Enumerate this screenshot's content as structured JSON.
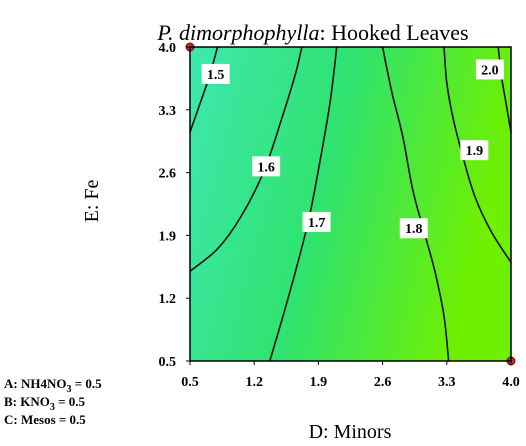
{
  "chart_data": {
    "type": "contour",
    "title": {
      "species": "P. dimorphophylla",
      "response": ": Hooked Leaves"
    },
    "xlabel": "D: Minors",
    "ylabel": "E: Fe",
    "xlim": [
      0.5,
      4.0
    ],
    "ylim": [
      0.5,
      4.0
    ],
    "x_ticks": [
      "0.5",
      "1.2",
      "1.9",
      "2.6",
      "3.3",
      "4.0"
    ],
    "y_ticks": [
      "0.5",
      "1.2",
      "1.9",
      "2.6",
      "3.3",
      "4.0"
    ],
    "contours": [
      {
        "level": "1.5",
        "points": [
          [
            0.5,
            3.05
          ],
          [
            0.62,
            3.4
          ],
          [
            0.72,
            3.7
          ],
          [
            0.8,
            4.0
          ]
        ]
      },
      {
        "level": "1.6",
        "points": [
          [
            0.5,
            1.5
          ],
          [
            0.8,
            1.75
          ],
          [
            1.05,
            2.1
          ],
          [
            1.3,
            2.6
          ],
          [
            1.5,
            3.2
          ],
          [
            1.65,
            3.7
          ],
          [
            1.72,
            4.0
          ]
        ]
      },
      {
        "level": "1.7",
        "points": [
          [
            1.37,
            0.5
          ],
          [
            1.5,
            0.95
          ],
          [
            1.65,
            1.5
          ],
          [
            1.8,
            2.1
          ],
          [
            1.93,
            2.8
          ],
          [
            2.03,
            3.4
          ],
          [
            2.1,
            4.0
          ]
        ]
      },
      {
        "level": "1.8",
        "points": [
          [
            3.32,
            0.5
          ],
          [
            3.27,
            1.0
          ],
          [
            3.17,
            1.5
          ],
          [
            3.05,
            1.95
          ],
          [
            2.93,
            2.4
          ],
          [
            2.82,
            3.0
          ],
          [
            2.7,
            3.5
          ],
          [
            2.6,
            4.0
          ]
        ]
      },
      {
        "level": "1.9",
        "points": [
          [
            4.0,
            1.6
          ],
          [
            3.78,
            1.95
          ],
          [
            3.6,
            2.35
          ],
          [
            3.47,
            2.8
          ],
          [
            3.37,
            3.2
          ],
          [
            3.3,
            3.6
          ],
          [
            3.27,
            4.0
          ]
        ]
      },
      {
        "level": "2.0",
        "points": [
          [
            4.0,
            3.05
          ],
          [
            3.95,
            3.35
          ],
          [
            3.9,
            3.65
          ],
          [
            3.86,
            4.0
          ]
        ]
      }
    ],
    "contour_labels": [
      {
        "level": "1.5",
        "x": 0.78,
        "y": 3.7
      },
      {
        "level": "1.6",
        "x": 1.33,
        "y": 2.67
      },
      {
        "level": "1.7",
        "x": 1.88,
        "y": 2.05
      },
      {
        "level": "1.8",
        "x": 2.94,
        "y": 1.98
      },
      {
        "level": "1.9",
        "x": 3.6,
        "y": 2.85
      },
      {
        "level": "2.0",
        "x": 3.77,
        "y": 3.75
      }
    ],
    "design_points": [
      {
        "x": 0.5,
        "y": 4.0
      },
      {
        "x": 4.0,
        "y": 0.5
      }
    ],
    "colors": {
      "low": "#3ee8b0",
      "mid": "#2fe36e",
      "high": "#6ff000",
      "contour_line": "#111111",
      "design_point": "#c62a2a"
    },
    "fixed_factors": [
      {
        "prefix": "A: NH4NO",
        "sub": "3",
        "suffix": " = 0.5"
      },
      {
        "prefix": "B: KNO",
        "sub": "3",
        "suffix": " = 0.5"
      },
      {
        "prefix": "C: Mesos",
        "sub": "",
        "suffix": " = 0.5"
      }
    ]
  }
}
